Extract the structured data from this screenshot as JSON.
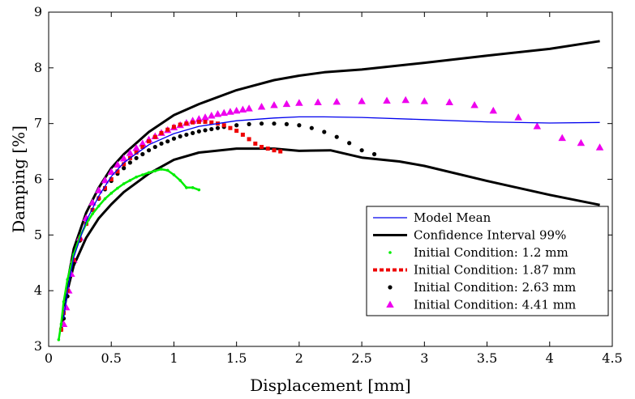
{
  "chart_data": {
    "type": "line",
    "title": "",
    "xlabel": "Displacement [mm]",
    "ylabel": "Damping [%]",
    "xlim": [
      0,
      4.5
    ],
    "ylim": [
      3,
      9
    ],
    "x_ticks": [
      "0",
      "0.5",
      "1",
      "1.5",
      "2",
      "2.5",
      "3",
      "3.5",
      "4",
      "4.5"
    ],
    "y_ticks": [
      "3",
      "4",
      "5",
      "6",
      "7",
      "8",
      "9"
    ],
    "grid": false,
    "legend_position": "bottom-right",
    "series": [
      {
        "name": "Model Mean",
        "style": "line",
        "color": "#0000ee",
        "x": [
          0.12,
          0.15,
          0.2,
          0.3,
          0.4,
          0.5,
          0.6,
          0.8,
          1.0,
          1.2,
          1.5,
          1.8,
          2.0,
          2.2,
          2.5,
          3.0,
          3.5,
          4.0,
          4.4
        ],
        "y": [
          3.5,
          4.0,
          4.6,
          5.25,
          5.7,
          6.05,
          6.3,
          6.62,
          6.82,
          6.95,
          7.05,
          7.1,
          7.12,
          7.12,
          7.11,
          7.07,
          7.03,
          7.01,
          7.02
        ]
      },
      {
        "name": "Confidence Interval 99%",
        "style": "line",
        "color": "#000000",
        "x": [
          0.12,
          0.15,
          0.2,
          0.3,
          0.4,
          0.5,
          0.6,
          0.8,
          1.0,
          1.2,
          1.5,
          1.8,
          2.0,
          2.2,
          2.5,
          3.0,
          3.5,
          4.0,
          4.4
        ],
        "y": [
          3.7,
          4.15,
          4.75,
          5.4,
          5.85,
          6.2,
          6.45,
          6.85,
          7.15,
          7.35,
          7.6,
          7.78,
          7.86,
          7.92,
          7.97,
          8.09,
          8.22,
          8.34,
          8.48
        ]
      },
      {
        "name": "",
        "style": "line",
        "color": "#000000",
        "x": [
          0.1,
          0.12,
          0.15,
          0.2,
          0.3,
          0.4,
          0.5,
          0.6,
          0.8,
          1.0,
          1.2,
          1.5,
          1.8,
          2.0,
          2.25,
          2.5,
          2.8,
          3.0,
          3.5,
          4.0,
          4.4
        ],
        "y": [
          3.3,
          3.6,
          4.0,
          4.45,
          4.95,
          5.3,
          5.55,
          5.77,
          6.1,
          6.35,
          6.48,
          6.55,
          6.55,
          6.51,
          6.52,
          6.39,
          6.32,
          6.24,
          5.97,
          5.72,
          5.54
        ]
      },
      {
        "name": "Initial Condition: 1.2 mm",
        "style": "points",
        "marker": "dot-small",
        "color": "#00ee00",
        "x": [
          0.08,
          0.1,
          0.12,
          0.15,
          0.2,
          0.25,
          0.3,
          0.35,
          0.4,
          0.45,
          0.5,
          0.55,
          0.6,
          0.65,
          0.7,
          0.75,
          0.8,
          0.85,
          0.9,
          0.95,
          1.0,
          1.05,
          1.1,
          1.15,
          1.2
        ],
        "y": [
          3.12,
          3.4,
          3.8,
          4.2,
          4.65,
          4.97,
          5.2,
          5.38,
          5.52,
          5.65,
          5.75,
          5.84,
          5.92,
          5.98,
          6.04,
          6.08,
          6.12,
          6.15,
          6.18,
          6.16,
          6.08,
          5.98,
          5.85,
          5.85,
          5.81
        ]
      },
      {
        "name": "Initial Condition: 1.87 mm",
        "style": "points",
        "marker": "square-small",
        "color": "#ee0000",
        "x": [
          0.1,
          0.12,
          0.15,
          0.2,
          0.25,
          0.3,
          0.35,
          0.4,
          0.45,
          0.5,
          0.55,
          0.6,
          0.65,
          0.7,
          0.75,
          0.8,
          0.85,
          0.9,
          0.95,
          1.0,
          1.05,
          1.1,
          1.15,
          1.2,
          1.25,
          1.3,
          1.35,
          1.4,
          1.45,
          1.5,
          1.55,
          1.6,
          1.65,
          1.7,
          1.75,
          1.8,
          1.85
        ],
        "y": [
          3.3,
          3.6,
          4.0,
          4.55,
          4.92,
          5.2,
          5.45,
          5.66,
          5.84,
          6.0,
          6.14,
          6.27,
          6.38,
          6.48,
          6.58,
          6.68,
          6.76,
          6.83,
          6.89,
          6.94,
          6.98,
          7.0,
          7.02,
          7.03,
          7.03,
          7.02,
          7.0,
          6.97,
          6.92,
          6.87,
          6.8,
          6.72,
          6.64,
          6.58,
          6.55,
          6.52,
          6.5
        ]
      },
      {
        "name": "Initial Condition: 2.63 mm",
        "style": "points",
        "marker": "dot",
        "color": "#000000",
        "x": [
          0.1,
          0.12,
          0.15,
          0.2,
          0.25,
          0.3,
          0.35,
          0.4,
          0.45,
          0.5,
          0.55,
          0.6,
          0.65,
          0.7,
          0.75,
          0.8,
          0.85,
          0.9,
          0.95,
          1.0,
          1.05,
          1.1,
          1.15,
          1.2,
          1.25,
          1.3,
          1.35,
          1.4,
          1.5,
          1.6,
          1.7,
          1.8,
          1.9,
          2.0,
          2.1,
          2.2,
          2.3,
          2.4,
          2.5,
          2.6
        ],
        "y": [
          3.3,
          3.5,
          3.9,
          4.5,
          4.9,
          5.2,
          5.45,
          5.65,
          5.82,
          5.97,
          6.1,
          6.2,
          6.3,
          6.38,
          6.45,
          6.52,
          6.58,
          6.64,
          6.68,
          6.73,
          6.77,
          6.8,
          6.83,
          6.86,
          6.88,
          6.9,
          6.92,
          6.94,
          6.97,
          6.99,
          7.0,
          7.0,
          6.99,
          6.97,
          6.92,
          6.85,
          6.76,
          6.65,
          6.52,
          6.45
        ]
      },
      {
        "name": "Initial Condition: 4.41 mm",
        "style": "points",
        "marker": "triangle",
        "color": "#ee00ee",
        "x": [
          0.12,
          0.14,
          0.16,
          0.18,
          0.2,
          0.25,
          0.3,
          0.35,
          0.4,
          0.45,
          0.5,
          0.55,
          0.6,
          0.65,
          0.7,
          0.75,
          0.8,
          0.85,
          0.9,
          0.95,
          1.0,
          1.05,
          1.1,
          1.15,
          1.2,
          1.25,
          1.3,
          1.35,
          1.4,
          1.45,
          1.5,
          1.55,
          1.6,
          1.7,
          1.8,
          1.9,
          2.0,
          2.15,
          2.3,
          2.5,
          2.7,
          2.85,
          3.0,
          3.2,
          3.4,
          3.55,
          3.75,
          3.9,
          4.1,
          4.25,
          4.4
        ],
        "y": [
          3.4,
          3.7,
          4.0,
          4.3,
          4.55,
          4.95,
          5.3,
          5.58,
          5.8,
          5.98,
          6.13,
          6.26,
          6.37,
          6.47,
          6.56,
          6.64,
          6.71,
          6.77,
          6.83,
          6.88,
          6.93,
          6.97,
          7.01,
          7.05,
          7.08,
          7.11,
          7.14,
          7.17,
          7.19,
          7.21,
          7.23,
          7.25,
          7.27,
          7.3,
          7.33,
          7.35,
          7.37,
          7.38,
          7.39,
          7.4,
          7.41,
          7.42,
          7.4,
          7.38,
          7.33,
          7.23,
          7.11,
          6.95,
          6.74,
          6.65,
          6.57
        ]
      }
    ],
    "legend": [
      {
        "label": "Model Mean",
        "symbol": "line-blue"
      },
      {
        "label": "Confidence Interval 99%",
        "symbol": "line-black-thick"
      },
      {
        "label": "Initial Condition: 1.2 mm",
        "symbol": "dot-green"
      },
      {
        "label": "Initial Condition: 1.87 mm",
        "symbol": "dashed-red"
      },
      {
        "label": "Initial Condition: 2.63 mm",
        "symbol": "dot-black"
      },
      {
        "label": "Initial Condition: 4.41 mm",
        "symbol": "triangle-magenta"
      }
    ]
  }
}
